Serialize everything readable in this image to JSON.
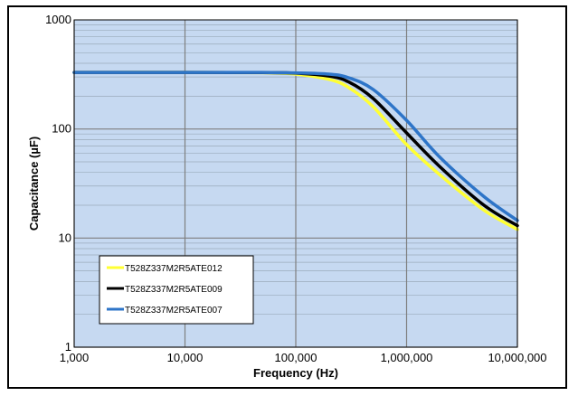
{
  "chart_data": {
    "type": "line",
    "xlabel": "Frequency (Hz)",
    "ylabel": "Capacitance  (µF)",
    "x_scale": "log",
    "y_scale": "log",
    "xlim": [
      1000,
      10000000
    ],
    "ylim": [
      1,
      1000
    ],
    "grid": true,
    "legend_position": "bottom-left",
    "plot_background": "#c6d9f1",
    "x_ticks": [
      "1,000",
      "10,000",
      "100,000",
      "1,000,000",
      "10,000,000"
    ],
    "y_ticks": [
      "1",
      "10",
      "100",
      "1000"
    ],
    "x": [
      1000,
      10000,
      50000,
      100000,
      200000,
      300000,
      500000,
      1000000,
      2000000,
      5000000,
      10000000
    ],
    "series": [
      {
        "name": "T528Z337M2R5ATE012",
        "color": "#ffff33",
        "values": [
          330,
          330,
          328,
          318,
          285,
          240,
          160,
          72,
          38,
          18,
          12
        ]
      },
      {
        "name": "T528Z337M2R5ATE009",
        "color": "#000000",
        "values": [
          330,
          330,
          329,
          325,
          305,
          270,
          190,
          92,
          45,
          20,
          13
        ]
      },
      {
        "name": "T528Z337M2R5ATE007",
        "color": "#2e75c8",
        "values": [
          330,
          330,
          330,
          327,
          318,
          295,
          230,
          120,
          55,
          24,
          14.5
        ]
      }
    ]
  }
}
